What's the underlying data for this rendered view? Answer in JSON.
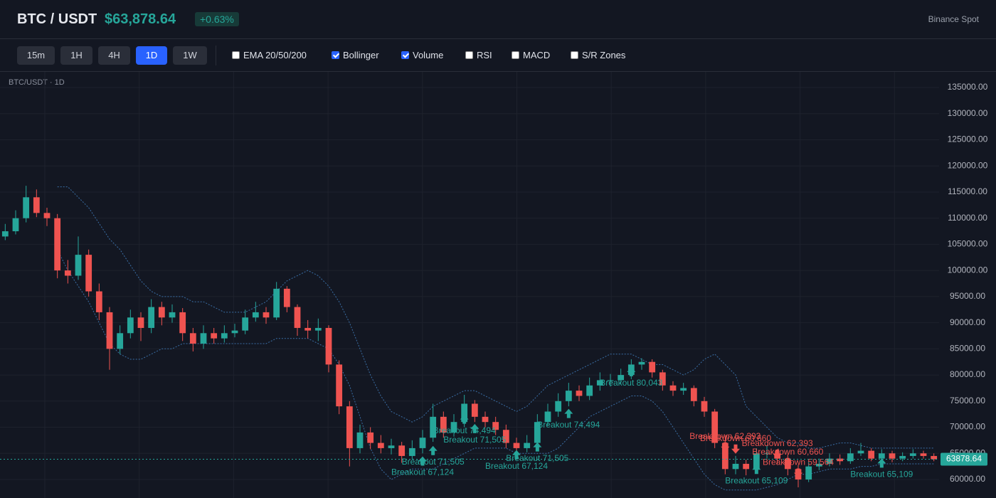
{
  "header": {
    "symbol": "BTC / USDT",
    "price": "$63,878.64",
    "change": "+0.63%",
    "exchange": "Binance Spot"
  },
  "toolbar": {
    "timeframes": [
      {
        "label": "15m",
        "active": false
      },
      {
        "label": "1H",
        "active": false
      },
      {
        "label": "4H",
        "active": false
      },
      {
        "label": "1D",
        "active": true
      },
      {
        "label": "1W",
        "active": false
      }
    ],
    "indicators": [
      {
        "label": "EMA 20/50/200",
        "checked": false
      },
      {
        "label": "Bollinger",
        "checked": true
      },
      {
        "label": "Volume",
        "checked": true
      },
      {
        "label": "RSI",
        "checked": false
      },
      {
        "label": "MACD",
        "checked": false
      },
      {
        "label": "S/R Zones",
        "checked": false
      }
    ]
  },
  "chart_data": {
    "type": "candlestick",
    "label": "BTC/USDT · 1D",
    "up_color": "#26a69a",
    "down_color": "#ef5350",
    "ylim": [
      56460,
      138000
    ],
    "yticks": [
      {
        "value": 60000,
        "label": "60000.00"
      },
      {
        "value": 65000,
        "label": "65000.00"
      },
      {
        "value": 70000,
        "label": "70000.00"
      },
      {
        "value": 75000,
        "label": "75000.00"
      },
      {
        "value": 80000,
        "label": "80000.00"
      },
      {
        "value": 85000,
        "label": "85000.00"
      },
      {
        "value": 90000,
        "label": "90000.00"
      },
      {
        "value": 95000,
        "label": "95000.00"
      },
      {
        "value": 100000,
        "label": "100000.00"
      },
      {
        "value": 105000,
        "label": "105000.00"
      },
      {
        "value": 110000,
        "label": "110000.00"
      },
      {
        "value": 115000,
        "label": "115000.00"
      },
      {
        "value": 120000,
        "label": "120000.00"
      },
      {
        "value": 125000,
        "label": "125000.00"
      },
      {
        "value": 130000,
        "label": "130000.00"
      },
      {
        "value": 135000,
        "label": "135000.00"
      }
    ],
    "grid": true,
    "last_price": 63878.64,
    "ohlc": [
      [
        106500,
        108900,
        105800,
        107500
      ],
      [
        107500,
        111500,
        106900,
        110000
      ],
      [
        110000,
        116200,
        109200,
        114000
      ],
      [
        114000,
        115500,
        110200,
        111000
      ],
      [
        111000,
        112000,
        108500,
        110000
      ],
      [
        110000,
        110800,
        98500,
        100000
      ],
      [
        100000,
        102000,
        97500,
        99000
      ],
      [
        99000,
        106500,
        98200,
        103000
      ],
      [
        103000,
        104000,
        95000,
        96000
      ],
      [
        96000,
        97500,
        90500,
        92000
      ],
      [
        92000,
        93000,
        81000,
        85000
      ],
      [
        85000,
        89500,
        84000,
        88000
      ],
      [
        88000,
        92500,
        87000,
        91000
      ],
      [
        91000,
        92000,
        86500,
        89000
      ],
      [
        89000,
        94500,
        88000,
        93000
      ],
      [
        93000,
        94000,
        89500,
        91000
      ],
      [
        91000,
        93500,
        90000,
        92000
      ],
      [
        92000,
        92800,
        86500,
        88000
      ],
      [
        88000,
        89000,
        84500,
        86000
      ],
      [
        86000,
        89500,
        85000,
        88000
      ],
      [
        88000,
        89000,
        86000,
        87000
      ],
      [
        87000,
        89500,
        86200,
        88000
      ],
      [
        88000,
        89800,
        87200,
        88500
      ],
      [
        88500,
        92500,
        87800,
        91000
      ],
      [
        91000,
        94000,
        90200,
        92000
      ],
      [
        92000,
        93000,
        89800,
        91000
      ],
      [
        91000,
        97800,
        90500,
        96500
      ],
      [
        96500,
        97000,
        92000,
        93000
      ],
      [
        93000,
        93500,
        87500,
        89000
      ],
      [
        89000,
        90500,
        87000,
        88500
      ],
      [
        88500,
        90800,
        86500,
        89000
      ],
      [
        89000,
        89500,
        80500,
        82000
      ],
      [
        82000,
        82800,
        72500,
        74000
      ],
      [
        74000,
        75000,
        62500,
        66000
      ],
      [
        66000,
        70500,
        65000,
        69000
      ],
      [
        69000,
        70000,
        65800,
        67000
      ],
      [
        67000,
        68500,
        65000,
        66000
      ],
      [
        66000,
        67800,
        64800,
        66500
      ],
      [
        66500,
        67200,
        63200,
        64500
      ],
      [
        64500,
        67500,
        63800,
        66000
      ],
      [
        66000,
        69500,
        65000,
        68000
      ],
      [
        68000,
        74500,
        67200,
        72000
      ],
      [
        72000,
        73000,
        68000,
        69000
      ],
      [
        69000,
        72500,
        68200,
        71000
      ],
      [
        71000,
        76200,
        70000,
        74500
      ],
      [
        74500,
        75200,
        71000,
        72000
      ],
      [
        72000,
        73000,
        70000,
        71000
      ],
      [
        71000,
        72000,
        68500,
        69500
      ],
      [
        69500,
        70500,
        66000,
        67000
      ],
      [
        67000,
        68000,
        65000,
        66000
      ],
      [
        66000,
        68500,
        65200,
        67000
      ],
      [
        67000,
        72500,
        66500,
        71000
      ],
      [
        71000,
        74500,
        70200,
        73000
      ],
      [
        73000,
        76500,
        72000,
        75000
      ],
      [
        75000,
        78500,
        74000,
        77000
      ],
      [
        77000,
        78000,
        75000,
        76000
      ],
      [
        76000,
        79500,
        75200,
        78000
      ],
      [
        78000,
        80500,
        77000,
        79000
      ],
      [
        79000,
        80200,
        77800,
        79000
      ],
      [
        79000,
        81200,
        78200,
        80000
      ],
      [
        80000,
        83000,
        79200,
        82000
      ],
      [
        82000,
        83200,
        81000,
        82500
      ],
      [
        82500,
        83000,
        79500,
        80500
      ],
      [
        80500,
        81000,
        77000,
        78000
      ],
      [
        78000,
        78800,
        76000,
        77000
      ],
      [
        77000,
        78500,
        76200,
        77500
      ],
      [
        77500,
        78000,
        74000,
        75000
      ],
      [
        75000,
        75800,
        72000,
        73000
      ],
      [
        73000,
        73500,
        66000,
        67000
      ],
      [
        67000,
        68000,
        61000,
        62000
      ],
      [
        62000,
        64500,
        61000,
        63000
      ],
      [
        63000,
        63800,
        60800,
        62000
      ],
      [
        62000,
        66000,
        61500,
        65000
      ],
      [
        65000,
        66500,
        64000,
        65000
      ],
      [
        65000,
        65800,
        63000,
        64000
      ],
      [
        64000,
        64800,
        60800,
        62000
      ],
      [
        62000,
        62800,
        58500,
        60000
      ],
      [
        60000,
        63500,
        59500,
        62500
      ],
      [
        62500,
        64000,
        61800,
        63000
      ],
      [
        63000,
        65000,
        62500,
        64000
      ],
      [
        64000,
        64800,
        62800,
        63500
      ],
      [
        63500,
        66000,
        63000,
        65000
      ],
      [
        65000,
        67000,
        64500,
        65500
      ],
      [
        65500,
        66000,
        63500,
        64000
      ],
      [
        64000,
        65800,
        63500,
        65000
      ],
      [
        65000,
        65500,
        63300,
        64000
      ],
      [
        64000,
        65200,
        63500,
        64500
      ],
      [
        64500,
        65800,
        64000,
        65000
      ],
      [
        65000,
        65500,
        64000,
        64500
      ],
      [
        64500,
        65000,
        63500,
        63878.64
      ]
    ],
    "bollinger": {
      "color": "#3a6ea5",
      "upper": [
        null,
        null,
        null,
        null,
        null,
        116000,
        116000,
        114000,
        112000,
        109000,
        106000,
        104000,
        101000,
        98000,
        96000,
        95000,
        95000,
        95000,
        94000,
        94000,
        93000,
        92000,
        92000,
        92000,
        93000,
        94000,
        96000,
        98000,
        99000,
        100000,
        99000,
        97000,
        94000,
        90000,
        85000,
        80000,
        76000,
        73000,
        72000,
        71000,
        72000,
        74000,
        75000,
        76000,
        77000,
        77000,
        76000,
        75000,
        74000,
        73000,
        74000,
        76000,
        78000,
        79000,
        80000,
        81000,
        82000,
        83000,
        84000,
        84000,
        84000,
        83000,
        82000,
        82000,
        81000,
        80000,
        81000,
        83000,
        84000,
        82000,
        80000,
        74000,
        72000,
        70000,
        68000,
        67000,
        67000,
        66000,
        66000,
        66500,
        67000,
        67000,
        66500,
        66000,
        66000,
        66000,
        66000,
        66000,
        66000,
        66000
      ],
      "lower": [
        null,
        null,
        null,
        null,
        null,
        104000,
        100000,
        97000,
        94000,
        90000,
        86000,
        84000,
        83000,
        83000,
        84000,
        85000,
        85000,
        86000,
        86000,
        86000,
        86000,
        86000,
        86000,
        86000,
        86000,
        86000,
        87000,
        87000,
        87000,
        87000,
        86000,
        85000,
        82000,
        78000,
        72000,
        66000,
        62000,
        60000,
        61000,
        62000,
        62000,
        62000,
        63000,
        64000,
        65000,
        66000,
        66000,
        66000,
        66000,
        65000,
        65000,
        65000,
        65000,
        66000,
        68000,
        70000,
        72000,
        73000,
        74000,
        75000,
        76000,
        76000,
        75000,
        73000,
        70000,
        67000,
        64000,
        61000,
        59000,
        58000,
        58000,
        58000,
        58000,
        58500,
        59000,
        60000,
        61000,
        61000,
        61500,
        62000,
        62000,
        62000,
        62500,
        62500,
        63000,
        63000,
        63000,
        63000,
        63000,
        63000
      ]
    },
    "annotations": [
      {
        "text": "Breakout 71,505",
        "index": 41,
        "y": 63300,
        "direction": "up"
      },
      {
        "text": "Breakout 67,124",
        "index": 40,
        "y": 61300,
        "direction": "up"
      },
      {
        "text": "Breakout 74,494",
        "index": 44,
        "y": 69300,
        "direction": "up"
      },
      {
        "text": "Breakout 71,505",
        "index": 45,
        "y": 67500,
        "direction": "up"
      },
      {
        "text": "Breakout 71,505",
        "index": 51,
        "y": 64000,
        "direction": "up"
      },
      {
        "text": "Breakout 67,124",
        "index": 49,
        "y": 62500,
        "direction": "up"
      },
      {
        "text": "Breakout 74,494",
        "index": 54,
        "y": 70400,
        "direction": "up"
      },
      {
        "text": "Breakout 80,043",
        "index": 60,
        "y": 78400,
        "direction": "up"
      },
      {
        "text": "Breakdown 62,393",
        "index": 69,
        "y": 68200,
        "direction": "down"
      },
      {
        "text": "Breakdown 60,660",
        "index": 70,
        "y": 67800,
        "direction": "down"
      },
      {
        "text": "Breakdown 62,393",
        "index": 74,
        "y": 66800,
        "direction": "down"
      },
      {
        "text": "Breakdown 60,660",
        "index": 75,
        "y": 65200,
        "direction": "down"
      },
      {
        "text": "Breakdown 59,564",
        "index": 76,
        "y": 63200,
        "direction": "down"
      },
      {
        "text": "Breakout 65,109",
        "index": 72,
        "y": 59700,
        "direction": "up"
      },
      {
        "text": "Breakout 65,109",
        "index": 84,
        "y": 60900,
        "direction": "up"
      }
    ]
  }
}
